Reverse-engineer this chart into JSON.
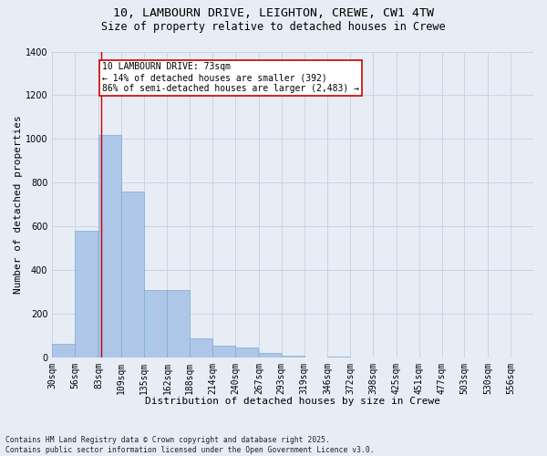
{
  "title_line1": "10, LAMBOURN DRIVE, LEIGHTON, CREWE, CW1 4TW",
  "title_line2": "Size of property relative to detached houses in Crewe",
  "xlabel": "Distribution of detached houses by size in Crewe",
  "ylabel": "Number of detached properties",
  "categories": [
    "30sqm",
    "56sqm",
    "83sqm",
    "109sqm",
    "135sqm",
    "162sqm",
    "188sqm",
    "214sqm",
    "240sqm",
    "267sqm",
    "293sqm",
    "319sqm",
    "346sqm",
    "372sqm",
    "398sqm",
    "425sqm",
    "451sqm",
    "477sqm",
    "503sqm",
    "530sqm",
    "556sqm"
  ],
  "values": [
    65,
    580,
    1020,
    760,
    310,
    310,
    90,
    55,
    45,
    20,
    10,
    0,
    5,
    0,
    0,
    0,
    0,
    0,
    0,
    0,
    0
  ],
  "bar_color": "#aec6e8",
  "bar_edge_color": "#7aafd4",
  "grid_color": "#c8d4e8",
  "background_color": "#e8edf5",
  "annotation_text": "10 LAMBOURN DRIVE: 73sqm\n← 14% of detached houses are smaller (392)\n86% of semi-detached houses are larger (2,483) →",
  "annotation_box_color": "#ffffff",
  "annotation_box_edge": "#cc0000",
  "vline_x": 73,
  "vline_color": "#cc0000",
  "ylim": [
    0,
    1400
  ],
  "yticks": [
    0,
    200,
    400,
    600,
    800,
    1000,
    1200,
    1400
  ],
  "bin_centers": [
    30,
    56,
    83,
    109,
    135,
    162,
    188,
    214,
    240,
    267,
    293,
    319,
    346,
    372,
    398,
    425,
    451,
    477,
    503,
    530,
    556
  ],
  "bin_width": 26,
  "footnote": "Contains HM Land Registry data © Crown copyright and database right 2025.\nContains public sector information licensed under the Open Government Licence v3.0.",
  "title_fontsize": 9.5,
  "subtitle_fontsize": 8.5,
  "tick_fontsize": 7,
  "xlabel_fontsize": 8,
  "ylabel_fontsize": 8,
  "annot_fontsize": 7,
  "footnote_fontsize": 5.8
}
